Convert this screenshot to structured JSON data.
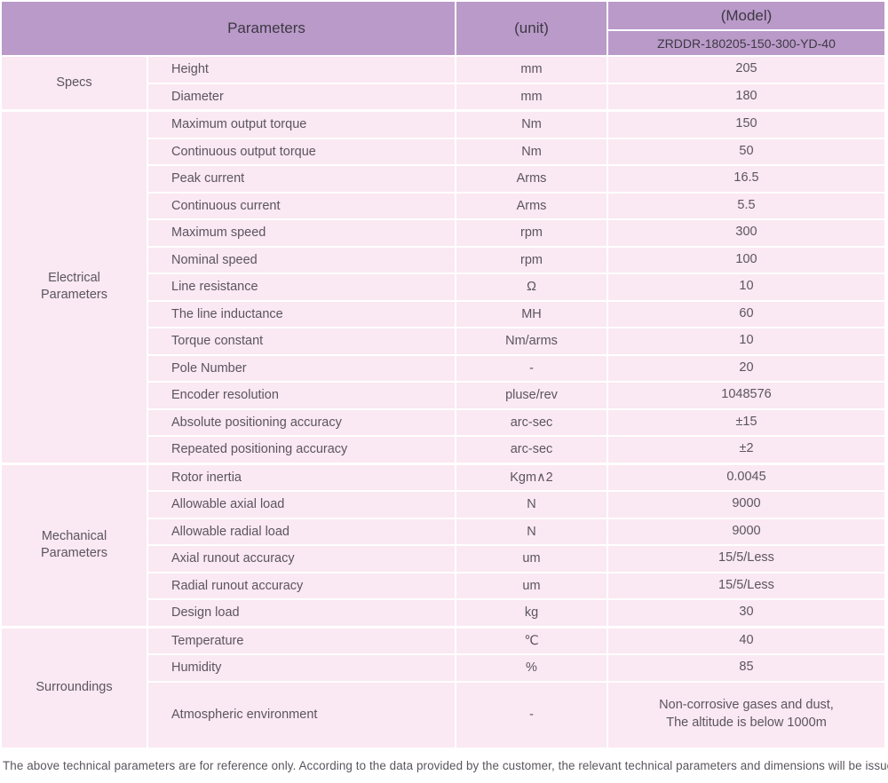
{
  "header": {
    "parameters_label": "Parameters",
    "unit_label": "(unit)",
    "model_label": "(Model)",
    "model_value": "ZRDDR-180205-150-300-YD-40"
  },
  "groups": [
    {
      "label": "Specs",
      "rows": [
        {
          "name": "Height",
          "unit": "mm",
          "value": "205"
        },
        {
          "name": "Diameter",
          "unit": "mm",
          "value": "180"
        }
      ]
    },
    {
      "label": "Electrical Parameters",
      "rows": [
        {
          "name": "Maximum output torque",
          "unit": "Nm",
          "value": "150"
        },
        {
          "name": "Continuous output torque",
          "unit": "Nm",
          "value": "50"
        },
        {
          "name": "Peak current",
          "unit": "Arms",
          "value": "16.5"
        },
        {
          "name": "Continuous current",
          "unit": "Arms",
          "value": "5.5"
        },
        {
          "name": "Maximum speed",
          "unit": "rpm",
          "value": "300"
        },
        {
          "name": "Nominal speed",
          "unit": "rpm",
          "value": "100"
        },
        {
          "name": "Line resistance",
          "unit": "Ω",
          "value": "10"
        },
        {
          "name": "The line inductance",
          "unit": "MH",
          "value": "60"
        },
        {
          "name": "Torque constant",
          "unit": "Nm/arms",
          "value": "10"
        },
        {
          "name": "Pole Number",
          "unit": "-",
          "value": "20"
        },
        {
          "name": "Encoder resolution",
          "unit": "pluse/rev",
          "value": "1048576"
        },
        {
          "name": "Absolute positioning accuracy",
          "unit": "arc-sec",
          "value": "±15"
        },
        {
          "name": "Repeated positioning accuracy",
          "unit": "arc-sec",
          "value": "±2"
        }
      ]
    },
    {
      "label": "Mechanical Parameters",
      "rows": [
        {
          "name": "Rotor inertia",
          "unit": "Kgm∧2",
          "value": "0.0045"
        },
        {
          "name": "Allowable axial load",
          "unit": "N",
          "value": "9000"
        },
        {
          "name": "Allowable radial load",
          "unit": "N",
          "value": "9000"
        },
        {
          "name": "Axial runout accuracy",
          "unit": "um",
          "value": "15/5/Less"
        },
        {
          "name": "Radial runout accuracy",
          "unit": "um",
          "value": "15/5/Less"
        },
        {
          "name": "Design load",
          "unit": "kg",
          "value": "30"
        }
      ]
    },
    {
      "label": "Surroundings",
      "rows": [
        {
          "name": "Temperature",
          "unit": "℃",
          "value": "40"
        },
        {
          "name": "Humidity",
          "unit": "%",
          "value": "85"
        },
        {
          "name": "Atmospheric environment",
          "unit": "-",
          "value": "Non-corrosive gases and dust,\nThe altitude is below 1000m"
        }
      ]
    }
  ],
  "footer": {
    "note": "The above technical parameters are for reference only. According to the data provided by the customer, the relevant technical parameters and dimensions will be issued."
  },
  "colors": {
    "header_bg": "#b99ac8",
    "row_bg": "#fae8f2",
    "separator": "#ffffff"
  }
}
